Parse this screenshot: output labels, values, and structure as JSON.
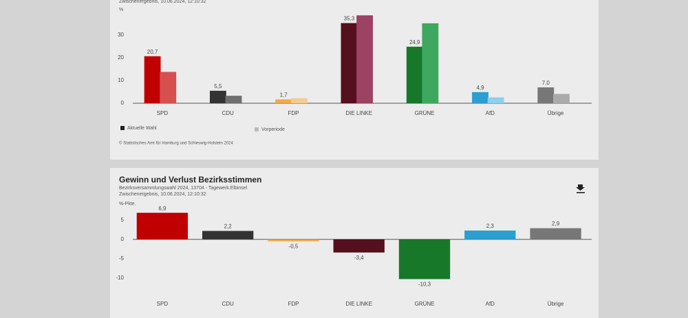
{
  "chart_data": [
    {
      "type": "bar",
      "subtitle": [
        "Zwischenergebnis, 10.06.2024, 12:10:32"
      ],
      "y_label": "%",
      "categories": [
        "SPD",
        "CDU",
        "FDP",
        "DIE LINKE",
        "GRÜNE",
        "AfD",
        "Übrige"
      ],
      "series": [
        {
          "name": "Aktuelle Wahl",
          "color": "#222222",
          "colors": [
            "#c00000",
            "#333333",
            "#f0a848",
            "#55101e",
            "#17782a",
            "#2a9fd0",
            "#777777"
          ],
          "values": [
            20.7,
            5.5,
            1.7,
            35.3,
            24.9,
            4.9,
            7.0
          ],
          "value_labels": [
            "20,7",
            "5,5",
            "1,7",
            "35,3",
            "24,9",
            "4,9",
            "7,0"
          ]
        },
        {
          "name": "Vorperiode",
          "color": "#bbbbbb",
          "colors": [
            "#d65050",
            "#707070",
            "#f5c990",
            "#9c4262",
            "#3fa860",
            "#8fd0ea",
            "#aaaaaa"
          ],
          "values": [
            13.8,
            3.3,
            2.2,
            38.7,
            35.2,
            2.6,
            4.1
          ]
        }
      ],
      "ylim": [
        0,
        40
      ],
      "yticks": [
        0,
        10,
        20,
        30
      ],
      "source": "© Statistisches Amt für Hamburg und Schleswig-Holstein 2024"
    },
    {
      "type": "bar",
      "title": "Gewinn und Verlust Bezirksstimmen",
      "subtitle": [
        "Bezirksversammlungswahl 2024, 13704 - Tagewerk.Elbinsel",
        "Zwischenergebnis, 10.06.2024, 12:10:32"
      ],
      "y_label": "%-Pkte.",
      "categories": [
        "SPD",
        "CDU",
        "FDP",
        "DIE LINKE",
        "GRÜNE",
        "AfD",
        "Übrige"
      ],
      "series": [
        {
          "colors": [
            "#c00000",
            "#333333",
            "#f0a848",
            "#55101e",
            "#17782a",
            "#2a9fd0",
            "#777777"
          ],
          "values": [
            6.9,
            2.2,
            -0.5,
            -3.4,
            -10.3,
            2.3,
            2.9
          ],
          "value_labels": [
            "6,9",
            "2,2",
            "-0,5",
            "-3,4",
            "-10,3",
            "2,3",
            "2,9"
          ]
        }
      ],
      "ylim": [
        -12,
        8
      ],
      "yticks": [
        5,
        0,
        -5,
        -10
      ]
    }
  ]
}
